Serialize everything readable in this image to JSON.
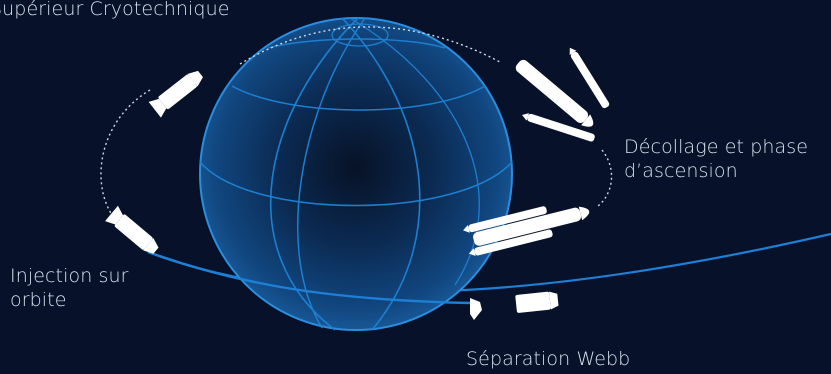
{
  "labels": {
    "upper_stage": "Supérieur Cryotechnique",
    "launch": [
      "Décollage et phase",
      "d’ascension"
    ],
    "injection": [
      "Injection sur",
      "orbite"
    ],
    "separation": "Séparation Webb"
  },
  "colors": {
    "background": "#07122a",
    "globe_grid": "#1d7fd0",
    "globe_edge": "#2a8ee0",
    "orbit": "#1e7fd6",
    "dotted_path": "#cfd8e6",
    "vehicle": "#ffffff",
    "text": "#d7e1ef"
  },
  "icons": [
    "globe-icon",
    "rocket-icon",
    "booster-icon",
    "upper-stage-icon",
    "webb-telescope-icon"
  ]
}
